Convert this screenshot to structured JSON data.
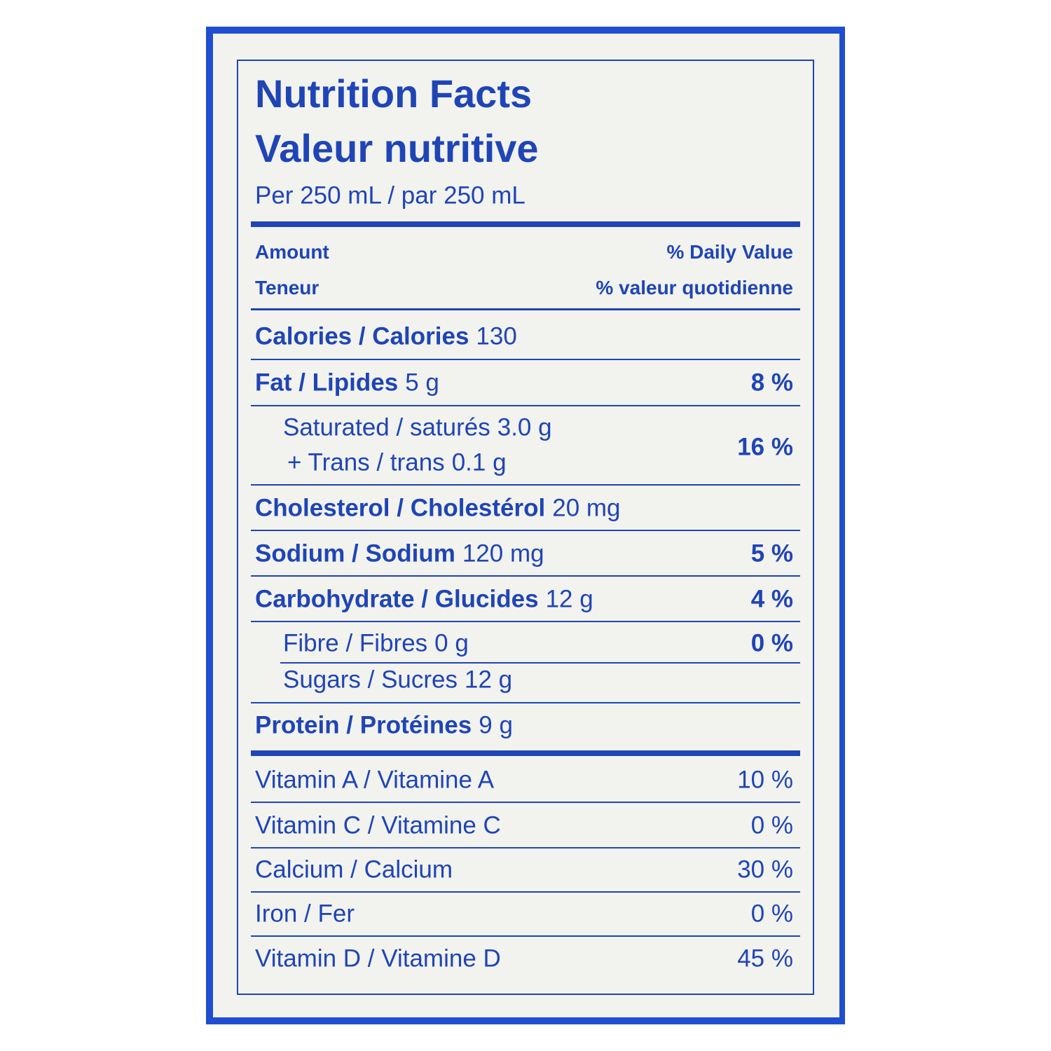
{
  "header": {
    "title_en": "Nutrition Facts",
    "title_fr": "Valeur nutritive",
    "serving": "Per 250 mL / par 250 mL"
  },
  "columns": {
    "amount_en": "Amount",
    "amount_fr": "Teneur",
    "dv_en": "% Daily Value",
    "dv_fr": "% valeur quotidienne"
  },
  "nutrients": [
    {
      "name": "Calories / Calories",
      "amount": "130"
    },
    {
      "name": "Fat / Lipides",
      "amount": "5 g",
      "dv": "8 %"
    },
    {
      "name": "Saturated / saturés",
      "amount": "3.0 g",
      "name2": "+ Trans / trans",
      "amount2": "0.1 g",
      "dv": "16 %"
    },
    {
      "name": "Cholesterol / Cholestérol",
      "amount": "20 mg"
    },
    {
      "name": "Sodium / Sodium",
      "amount": "120 mg",
      "dv": "5 %"
    },
    {
      "name": "Carbohydrate / Glucides",
      "amount": "12 g",
      "dv": "4 %"
    },
    {
      "name": "Fibre / Fibres",
      "amount": "0 g",
      "dv": "0 %"
    },
    {
      "name": "Sugars / Sucres",
      "amount": "12 g"
    },
    {
      "name": "Protein / Protéines",
      "amount": "9 g"
    }
  ],
  "vitamins": [
    {
      "name": "Vitamin A / Vitamine A",
      "dv": "10 %"
    },
    {
      "name": "Vitamin C / Vitamine C",
      "dv": "0 %"
    },
    {
      "name": "Calcium / Calcium",
      "dv": "30 %"
    },
    {
      "name": "Iron / Fer",
      "dv": "0 %"
    },
    {
      "name": "Vitamin D / Vitamine D",
      "dv": "45 %"
    }
  ]
}
